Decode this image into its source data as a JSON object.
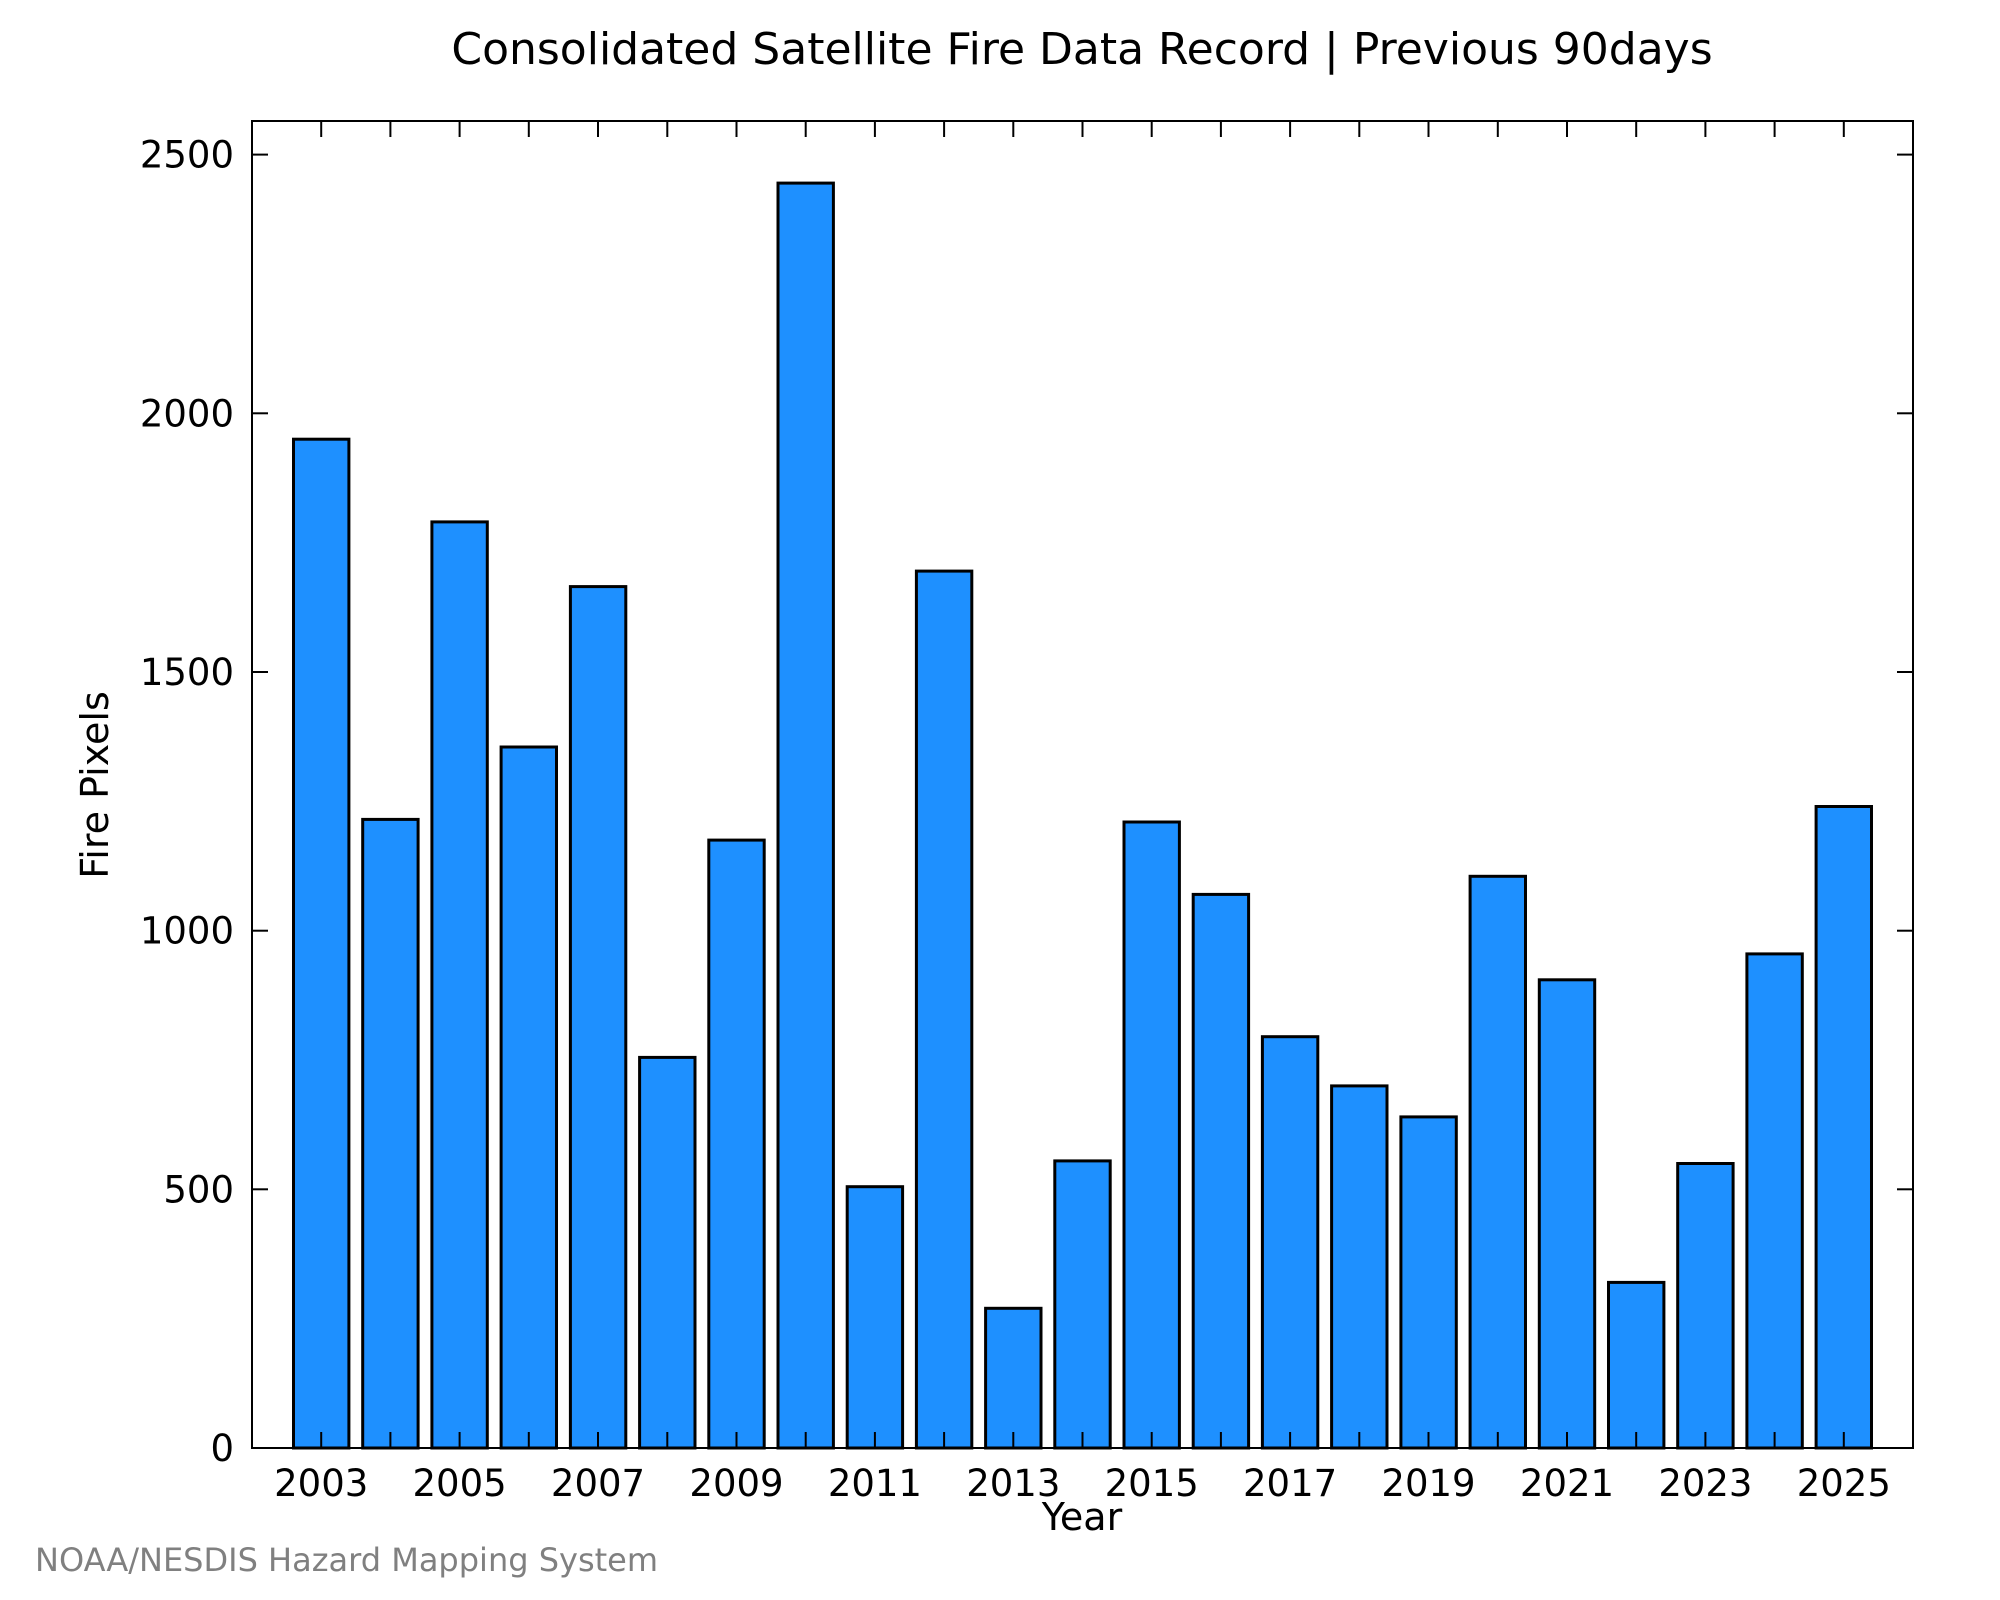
{
  "chart_data": {
    "type": "bar",
    "title": "Consolidated Satellite Fire Data Record | Previous 90days",
    "xlabel": "Year",
    "ylabel": "Fire Pixels",
    "categories": [
      "2003",
      "2004",
      "2005",
      "2006",
      "2007",
      "2008",
      "2009",
      "2010",
      "2011",
      "2012",
      "2013",
      "2014",
      "2015",
      "2016",
      "2017",
      "2018",
      "2019",
      "2020",
      "2021",
      "2022",
      "2023",
      "2024",
      "2025"
    ],
    "values": [
      1950,
      1215,
      1790,
      1355,
      1665,
      755,
      1175,
      2445,
      505,
      1695,
      270,
      555,
      1210,
      1070,
      795,
      700,
      640,
      1105,
      905,
      320,
      550,
      955,
      1240
    ],
    "x_tick_labels": [
      "2003",
      "2005",
      "2007",
      "2009",
      "2011",
      "2013",
      "2015",
      "2017",
      "2019",
      "2021",
      "2023",
      "2025"
    ],
    "y_ticks": [
      0,
      500,
      1000,
      1500,
      2000,
      2500
    ],
    "ylim": [
      0,
      2565
    ],
    "grid": false,
    "bar_color": "#1E90FF",
    "bar_edge_color": "#000000"
  },
  "credit": "NOAA/NESDIS Hazard Mapping System"
}
